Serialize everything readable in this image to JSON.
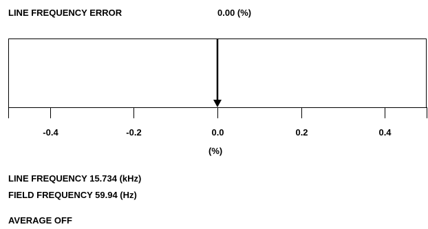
{
  "header": {
    "label": "LINE FREQUENCY ERROR",
    "value": "0.00 (%)"
  },
  "meter": {
    "value_percent": 0.0,
    "range": [
      -0.5,
      0.5
    ],
    "ticks": [
      "-0.4",
      "-0.2",
      "0.0",
      "0.2",
      "0.4"
    ],
    "tick_values": [
      -0.4,
      -0.2,
      0.0,
      0.2,
      0.4
    ],
    "unit": "(%)"
  },
  "info": {
    "line_frequency": "LINE FREQUENCY 15.734 (kHz)",
    "field_frequency": "FIELD FREQUENCY 59.94 (Hz)",
    "average": "AVERAGE OFF"
  },
  "colors": {
    "foreground": "#000000",
    "background": "#ffffff"
  }
}
